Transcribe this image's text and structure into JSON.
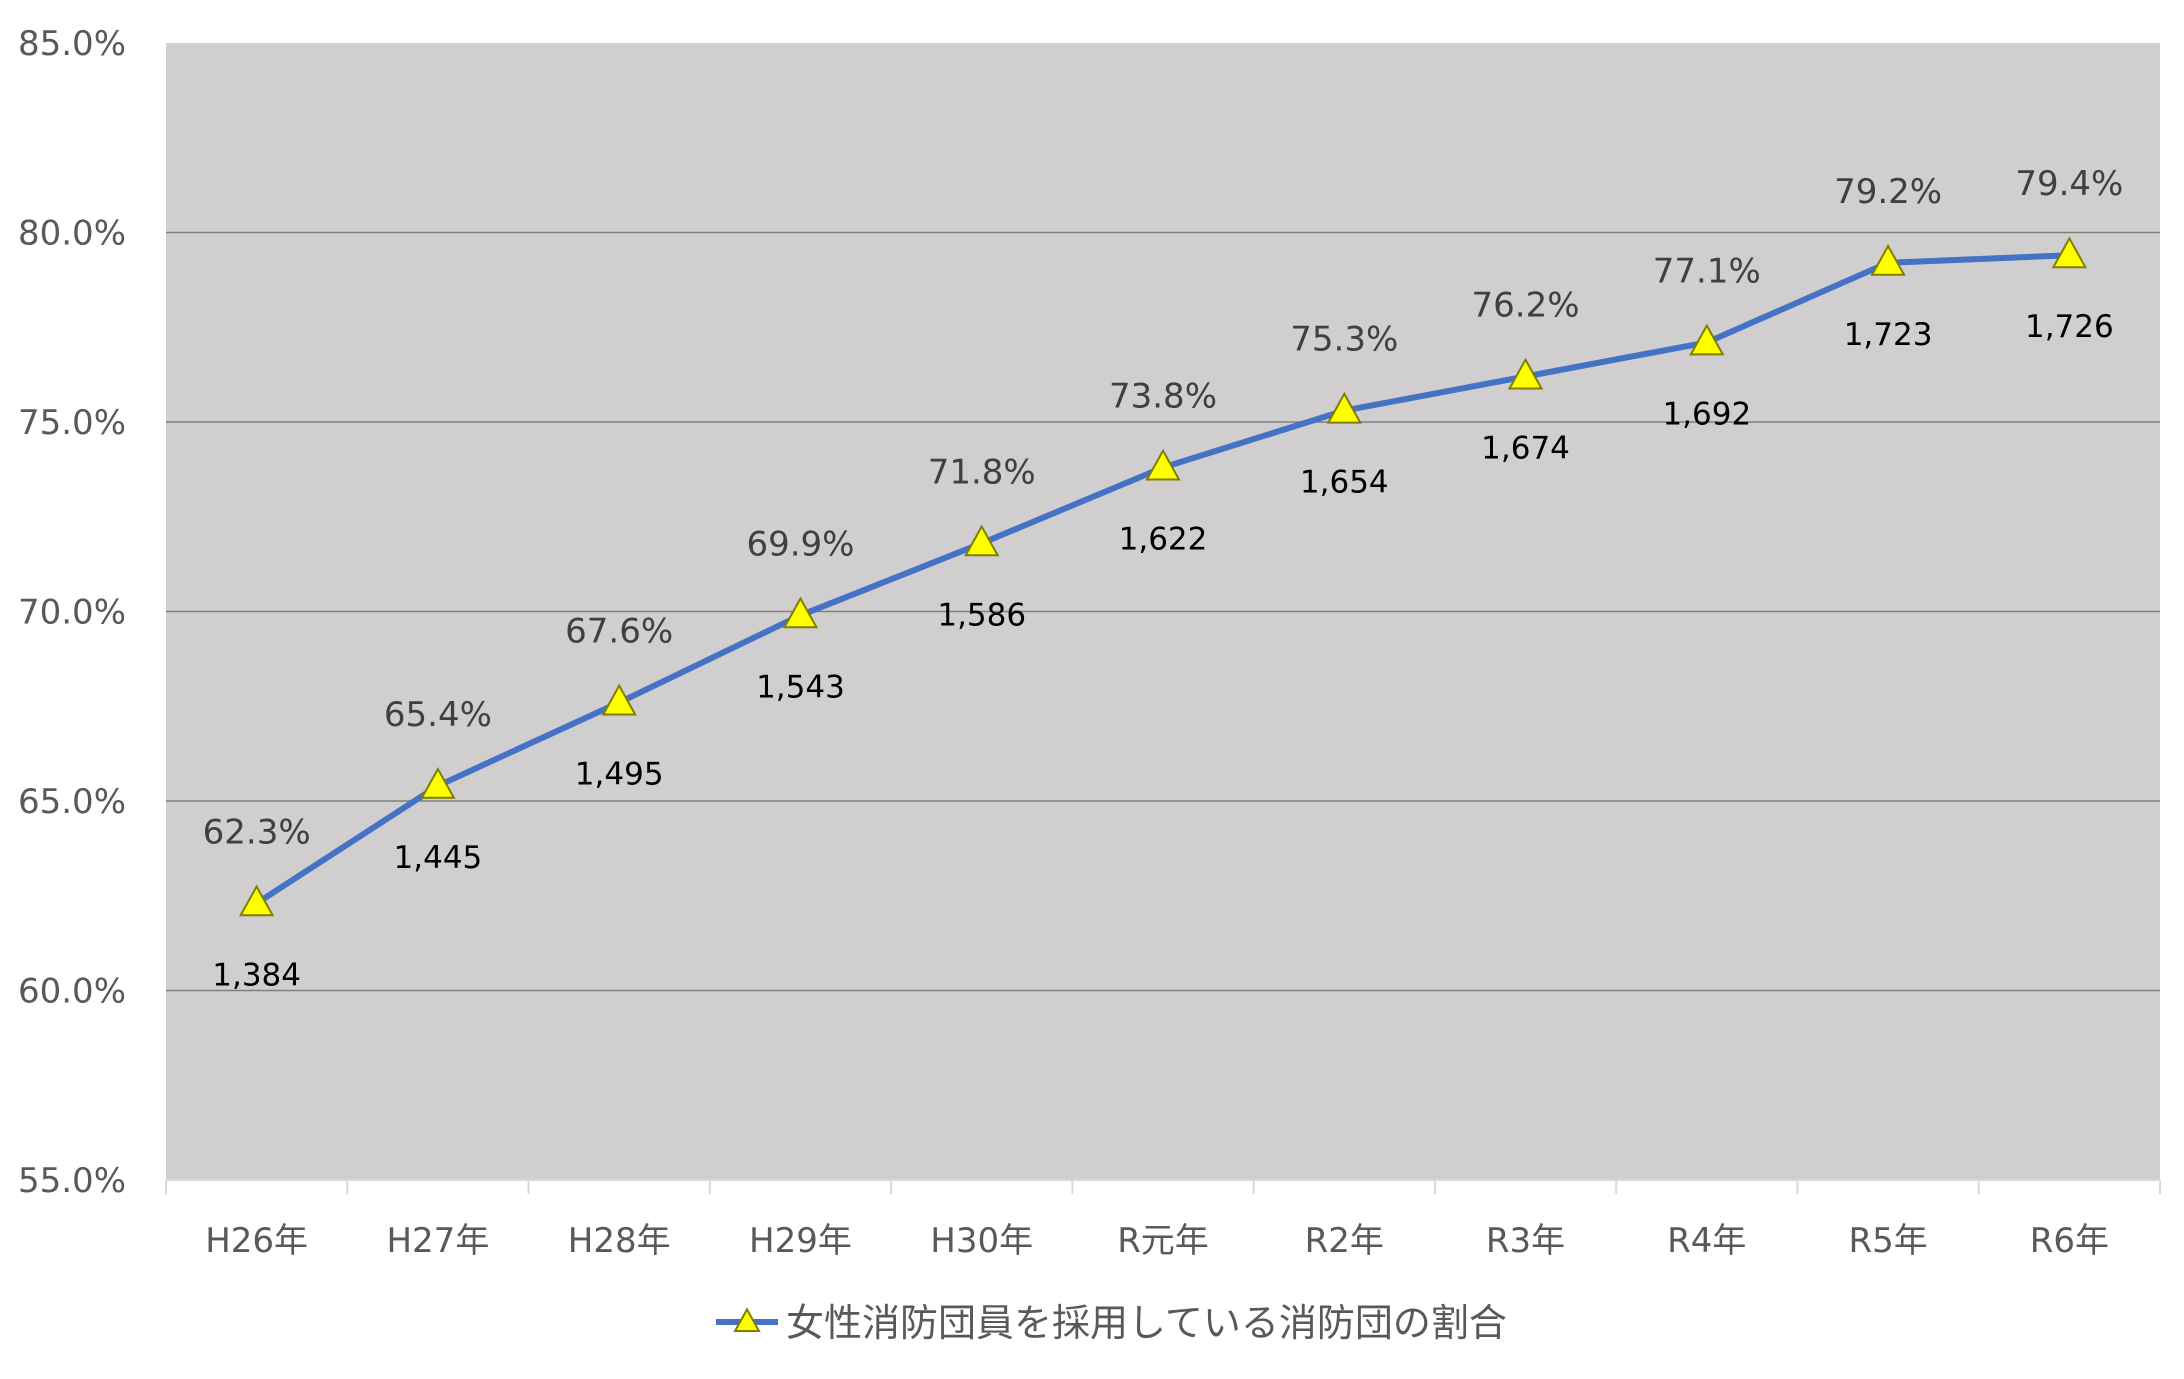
{
  "chart_data": {
    "type": "line",
    "title": "",
    "xlabel": "",
    "ylabel": "",
    "categories": [
      "H26年",
      "H27年",
      "H28年",
      "H29年",
      "H30年",
      "R元年",
      "R2年",
      "R3年",
      "R4年",
      "R5年",
      "R6年"
    ],
    "series": [
      {
        "name": "女性消防団員を採用している消防団の割合",
        "values": [
          62.3,
          65.4,
          67.6,
          69.9,
          71.8,
          73.8,
          75.3,
          76.2,
          77.1,
          79.2,
          79.4
        ],
        "value_labels": [
          "62.3%",
          "65.4%",
          "67.6%",
          "69.9%",
          "71.8%",
          "73.8%",
          "75.3%",
          "76.2%",
          "77.1%",
          "79.2%",
          "79.4%"
        ],
        "count_labels": [
          "1,384",
          "1,445",
          "1,495",
          "1,543",
          "1,586",
          "1,622",
          "1,654",
          "1,674",
          "1,692",
          "1,723",
          "1,726"
        ],
        "line_color": "#4472c4",
        "marker": "triangle",
        "marker_color": "#ffff00",
        "marker_edge_color": "#7f7f00"
      }
    ],
    "ylim": [
      55.0,
      85.0
    ],
    "yticks": [
      55.0,
      60.0,
      65.0,
      70.0,
      75.0,
      80.0,
      85.0
    ],
    "ytick_labels": [
      "55.0%",
      "60.0%",
      "65.0%",
      "70.0%",
      "75.0%",
      "80.0%",
      "85.0%"
    ],
    "grid": true,
    "legend_position": "bottom-center",
    "plot_background": "#d0cece",
    "gridline_color": "#7f7f7f"
  }
}
